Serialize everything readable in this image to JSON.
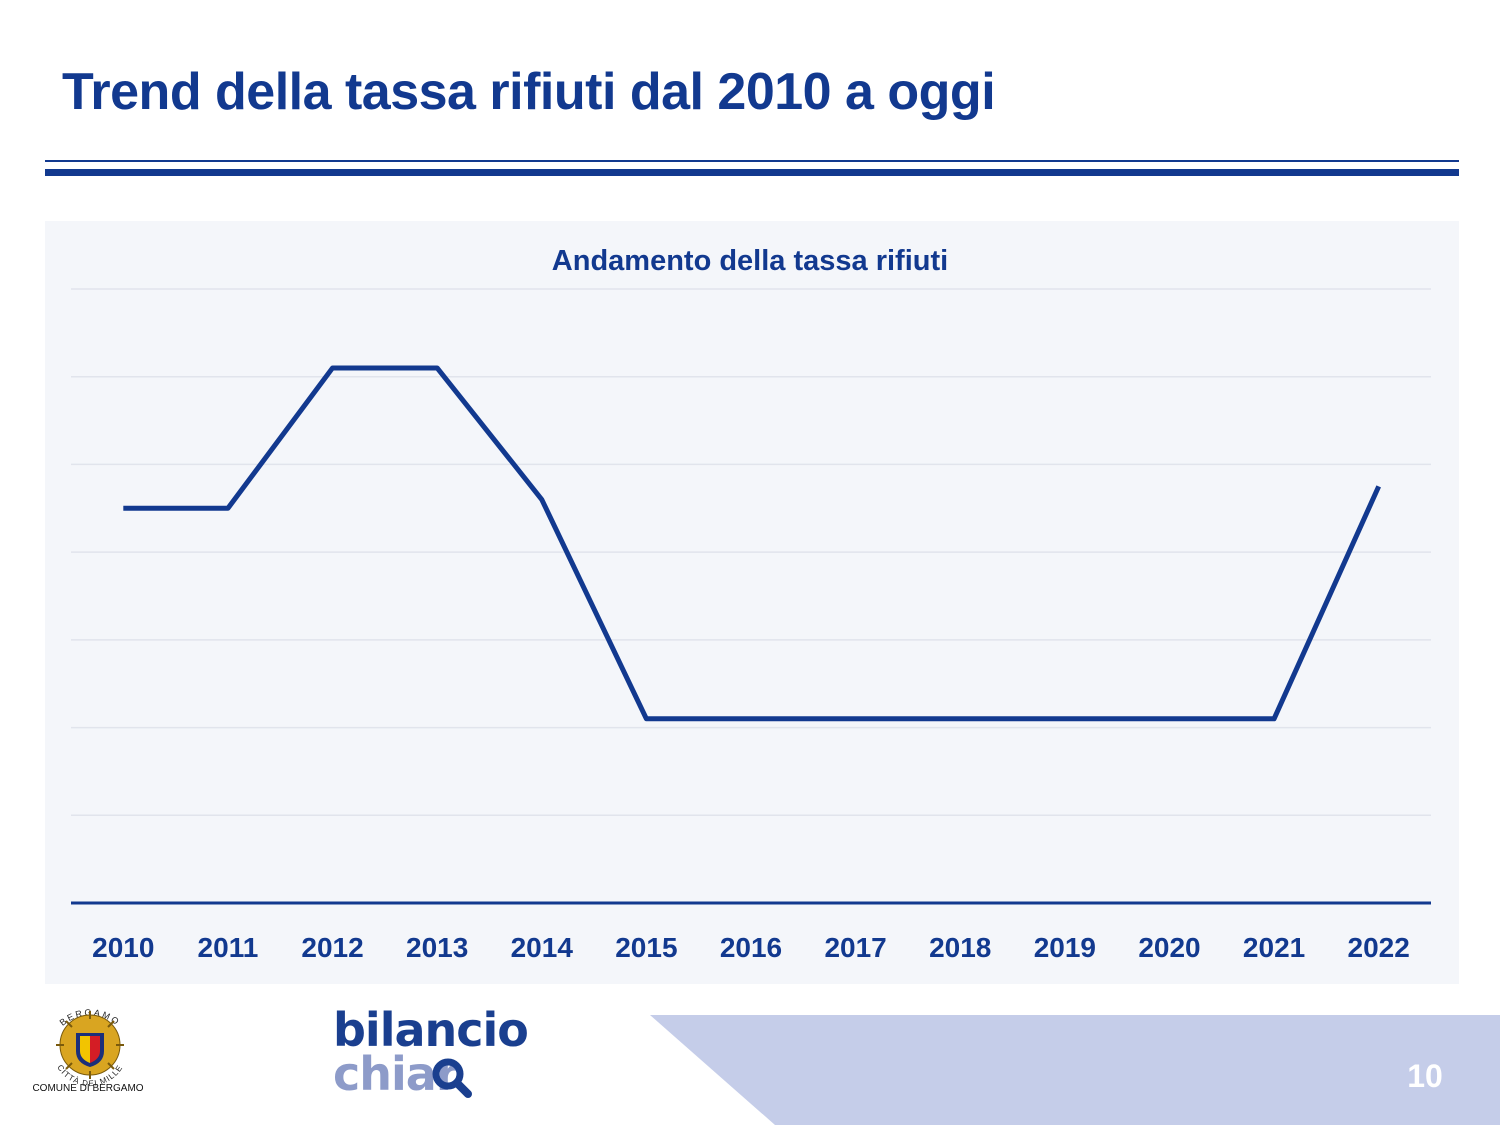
{
  "header": {
    "title": "Trend della tassa rifiuti dal 2010 a oggi"
  },
  "chart_data": {
    "type": "line",
    "title": "Andamento della tassa rifiuti",
    "xlabel": "",
    "ylabel": "",
    "categories": [
      "2010",
      "2011",
      "2012",
      "2013",
      "2014",
      "2015",
      "2016",
      "2017",
      "2018",
      "2019",
      "2020",
      "2021",
      "2022"
    ],
    "series": [
      {
        "values": [
          4.5,
          4.5,
          6.1,
          6.1,
          4.6,
          2.1,
          2.1,
          2.1,
          2.1,
          2.1,
          2.1,
          2.1,
          4.75
        ]
      }
    ],
    "ylim": [
      0,
      7
    ],
    "grid": true,
    "legend": "none",
    "line_color": "#12398f"
  },
  "footer": {
    "page_number": "10",
    "brand_line1": "bilancio",
    "brand_line2": "chiar",
    "emblem_top_text": "BERGAMO",
    "emblem_motto": "CITTÀ DEI MILLE",
    "emblem_caption": "COMUNE DI BERGAMO",
    "band_color": "#c5cde9"
  }
}
